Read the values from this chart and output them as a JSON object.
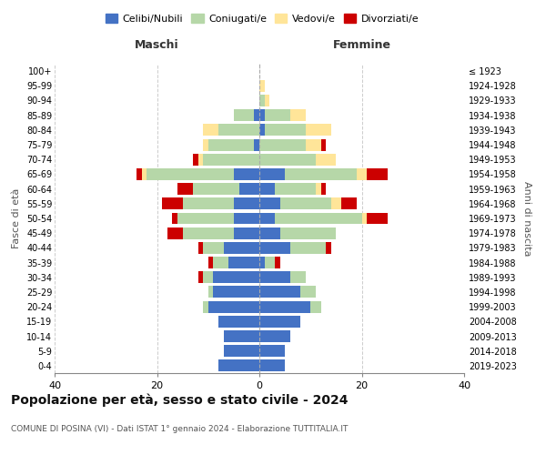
{
  "age_groups": [
    "100+",
    "95-99",
    "90-94",
    "85-89",
    "80-84",
    "75-79",
    "70-74",
    "65-69",
    "60-64",
    "55-59",
    "50-54",
    "45-49",
    "40-44",
    "35-39",
    "30-34",
    "25-29",
    "20-24",
    "15-19",
    "10-14",
    "5-9",
    "0-4"
  ],
  "birth_years": [
    "≤ 1923",
    "1924-1928",
    "1929-1933",
    "1934-1938",
    "1939-1943",
    "1944-1948",
    "1949-1953",
    "1954-1958",
    "1959-1963",
    "1964-1968",
    "1969-1973",
    "1974-1978",
    "1979-1983",
    "1984-1988",
    "1989-1993",
    "1994-1998",
    "1999-2003",
    "2004-2008",
    "2009-2013",
    "2014-2018",
    "2019-2023"
  ],
  "males": {
    "celibi": [
      0,
      0,
      0,
      1,
      0,
      1,
      0,
      5,
      4,
      5,
      5,
      5,
      7,
      6,
      9,
      9,
      10,
      8,
      7,
      7,
      8
    ],
    "coniugati": [
      0,
      0,
      0,
      4,
      8,
      9,
      11,
      17,
      9,
      10,
      11,
      10,
      4,
      3,
      2,
      1,
      1,
      0,
      0,
      0,
      0
    ],
    "vedovi": [
      0,
      0,
      0,
      0,
      3,
      1,
      1,
      1,
      0,
      0,
      0,
      0,
      0,
      0,
      0,
      0,
      0,
      0,
      0,
      0,
      0
    ],
    "divorziati": [
      0,
      0,
      0,
      0,
      0,
      0,
      1,
      1,
      3,
      4,
      1,
      3,
      1,
      1,
      1,
      0,
      0,
      0,
      0,
      0,
      0
    ]
  },
  "females": {
    "nubili": [
      0,
      0,
      0,
      1,
      1,
      0,
      0,
      5,
      3,
      4,
      3,
      4,
      6,
      1,
      6,
      8,
      10,
      8,
      6,
      5,
      5
    ],
    "coniugate": [
      0,
      0,
      1,
      5,
      8,
      9,
      11,
      14,
      8,
      10,
      17,
      11,
      7,
      2,
      3,
      3,
      2,
      0,
      0,
      0,
      0
    ],
    "vedove": [
      0,
      1,
      1,
      3,
      5,
      3,
      4,
      2,
      1,
      2,
      1,
      0,
      0,
      0,
      0,
      0,
      0,
      0,
      0,
      0,
      0
    ],
    "divorziate": [
      0,
      0,
      0,
      0,
      0,
      1,
      0,
      4,
      1,
      3,
      4,
      0,
      1,
      1,
      0,
      0,
      0,
      0,
      0,
      0,
      0
    ]
  },
  "colors": {
    "celibi": "#4472c4",
    "coniugati": "#b6d7a8",
    "vedovi": "#ffe599",
    "divorziati": "#cc0000"
  },
  "xlim": 40,
  "title": "Popolazione per età, sesso e stato civile - 2024",
  "subtitle": "COMUNE DI POSINA (VI) - Dati ISTAT 1° gennaio 2024 - Elaborazione TUTTITALIA.IT",
  "legend_labels": [
    "Celibi/Nubili",
    "Coniugati/e",
    "Vedovi/e",
    "Divorziati/e"
  ],
  "xlabel_left": "Maschi",
  "xlabel_right": "Femmine",
  "ylabel_left": "Fasce di età",
  "ylabel_right": "Anni di nascita",
  "background_color": "#ffffff",
  "grid_color": "#cccccc"
}
